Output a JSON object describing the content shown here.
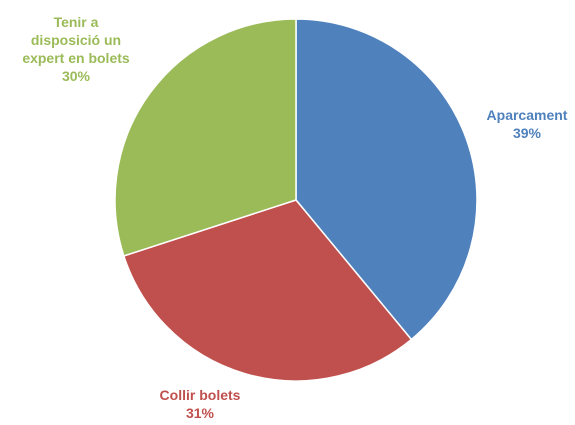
{
  "chart_data": {
    "type": "pie",
    "title": "",
    "start_angle_deg": 0,
    "direction": "clockwise",
    "legend": "none",
    "slices": [
      {
        "label_lines": [
          "Aparcament"
        ],
        "percent_label": "39%",
        "value": 39,
        "color": "#4F81BD",
        "label_color": "#4F81BD"
      },
      {
        "label_lines": [
          "Collir bolets"
        ],
        "percent_label": "31%",
        "value": 31,
        "color": "#C0504D",
        "label_color": "#C0504D"
      },
      {
        "label_lines": [
          "Tenir a",
          "disposició un",
          "expert en bolets"
        ],
        "percent_label": "30%",
        "value": 30,
        "color": "#9BBB59",
        "label_color": "#9BBB59"
      }
    ]
  }
}
